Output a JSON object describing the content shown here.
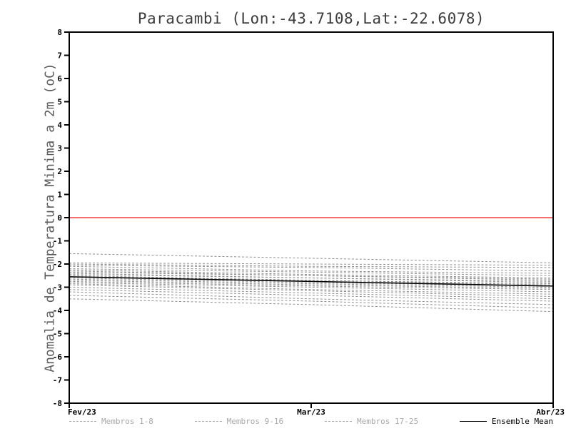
{
  "title": "Paracambi (Lon:-43.7108,Lat:-22.6078)",
  "y_axis_label": "Anomalia de Temperatura Minima a 2m (oC)",
  "colors": {
    "member_line": "#8f8f8f",
    "mean_line": "#000000",
    "zero_line": "#f53d3d",
    "frame": "#000000",
    "axis_text": "#000000",
    "title_text": "#3c3c3c",
    "member_legend_text": "#a9a9a9",
    "mean_legend_text": "#000000"
  },
  "legend": [
    {
      "label": "Membros 1-8",
      "style": "dashed",
      "color": "#a9a9a9",
      "text_color": "#a9a9a9"
    },
    {
      "label": "Membros 9-16",
      "style": "dashed",
      "color": "#a9a9a9",
      "text_color": "#a9a9a9"
    },
    {
      "label": "Membros 17-25",
      "style": "dashed",
      "color": "#a9a9a9",
      "text_color": "#a9a9a9"
    },
    {
      "label": "Ensemble Mean",
      "style": "solid",
      "color": "#000000",
      "text_color": "#000000"
    }
  ],
  "chart_data": {
    "type": "line",
    "title": "Paracambi (Lon:-43.7108,Lat:-22.6078)",
    "ylabel": "Anomalia de Temperatura Minima a 2m (oC)",
    "xlabel": "",
    "x_tick_labels": [
      "Fev/23",
      "Mar/23",
      "Abr/23"
    ],
    "y_ticks": [
      -8,
      -7,
      -6,
      -5,
      -4,
      -3,
      -2,
      -1,
      0,
      1,
      2,
      3,
      4,
      5,
      6,
      7,
      8
    ],
    "ylim": [
      -8,
      8
    ],
    "zero_line": 0,
    "grid": false,
    "legend_position": "bottom",
    "series": [
      {
        "name": "Membro 1",
        "group": "1-8",
        "values": [
          -1.55,
          -1.75,
          -1.95
        ]
      },
      {
        "name": "Membro 2",
        "group": "1-8",
        "values": [
          -1.95,
          -2.0,
          -2.05
        ]
      },
      {
        "name": "Membro 3",
        "group": "1-8",
        "values": [
          -2.0,
          -2.1,
          -2.15
        ]
      },
      {
        "name": "Membro 4",
        "group": "1-8",
        "values": [
          -2.05,
          -2.15,
          -2.3
        ]
      },
      {
        "name": "Membro 5",
        "group": "1-8",
        "values": [
          -2.1,
          -2.3,
          -2.4
        ]
      },
      {
        "name": "Membro 6",
        "group": "1-8",
        "values": [
          -2.2,
          -2.35,
          -2.5
        ]
      },
      {
        "name": "Membro 7",
        "group": "1-8",
        "values": [
          -2.25,
          -2.45,
          -2.6
        ]
      },
      {
        "name": "Membro 8",
        "group": "1-8",
        "values": [
          -2.3,
          -2.5,
          -2.65
        ]
      },
      {
        "name": "Membro 9",
        "group": "9-16",
        "values": [
          -2.35,
          -2.5,
          -2.7
        ]
      },
      {
        "name": "Membro 10",
        "group": "9-16",
        "values": [
          -2.4,
          -2.6,
          -2.75
        ]
      },
      {
        "name": "Membro 11",
        "group": "9-16",
        "values": [
          -2.45,
          -2.6,
          -2.8
        ]
      },
      {
        "name": "Membro 12",
        "group": "9-16",
        "values": [
          -2.5,
          -2.7,
          -2.85
        ]
      },
      {
        "name": "Membro 13",
        "group": "9-16",
        "values": [
          -2.55,
          -2.7,
          -2.9
        ]
      },
      {
        "name": "Membro 14",
        "group": "9-16",
        "values": [
          -2.6,
          -2.8,
          -2.95
        ]
      },
      {
        "name": "Membro 15",
        "group": "9-16",
        "values": [
          -2.65,
          -2.85,
          -3.0
        ]
      },
      {
        "name": "Membro 16",
        "group": "9-16",
        "values": [
          -2.7,
          -2.9,
          -3.05
        ]
      },
      {
        "name": "Membro 17",
        "group": "17-25",
        "values": [
          -2.75,
          -2.95,
          -3.1
        ]
      },
      {
        "name": "Membro 18",
        "group": "17-25",
        "values": [
          -2.8,
          -3.0,
          -3.2
        ]
      },
      {
        "name": "Membro 19",
        "group": "17-25",
        "values": [
          -2.85,
          -3.1,
          -3.3
        ]
      },
      {
        "name": "Membro 20",
        "group": "17-25",
        "values": [
          -2.9,
          -3.15,
          -3.4
        ]
      },
      {
        "name": "Membro 21",
        "group": "17-25",
        "values": [
          -3.0,
          -3.25,
          -3.5
        ]
      },
      {
        "name": "Membro 22",
        "group": "17-25",
        "values": [
          -3.1,
          -3.35,
          -3.6
        ]
      },
      {
        "name": "Membro 23",
        "group": "17-25",
        "values": [
          -3.2,
          -3.5,
          -3.75
        ]
      },
      {
        "name": "Membro 24",
        "group": "17-25",
        "values": [
          -3.35,
          -3.6,
          -3.9
        ]
      },
      {
        "name": "Membro 25",
        "group": "17-25",
        "values": [
          -3.5,
          -3.75,
          -4.05
        ]
      },
      {
        "name": "Ensemble Mean",
        "group": "mean",
        "values": [
          -2.55,
          -2.75,
          -2.95
        ]
      }
    ]
  }
}
